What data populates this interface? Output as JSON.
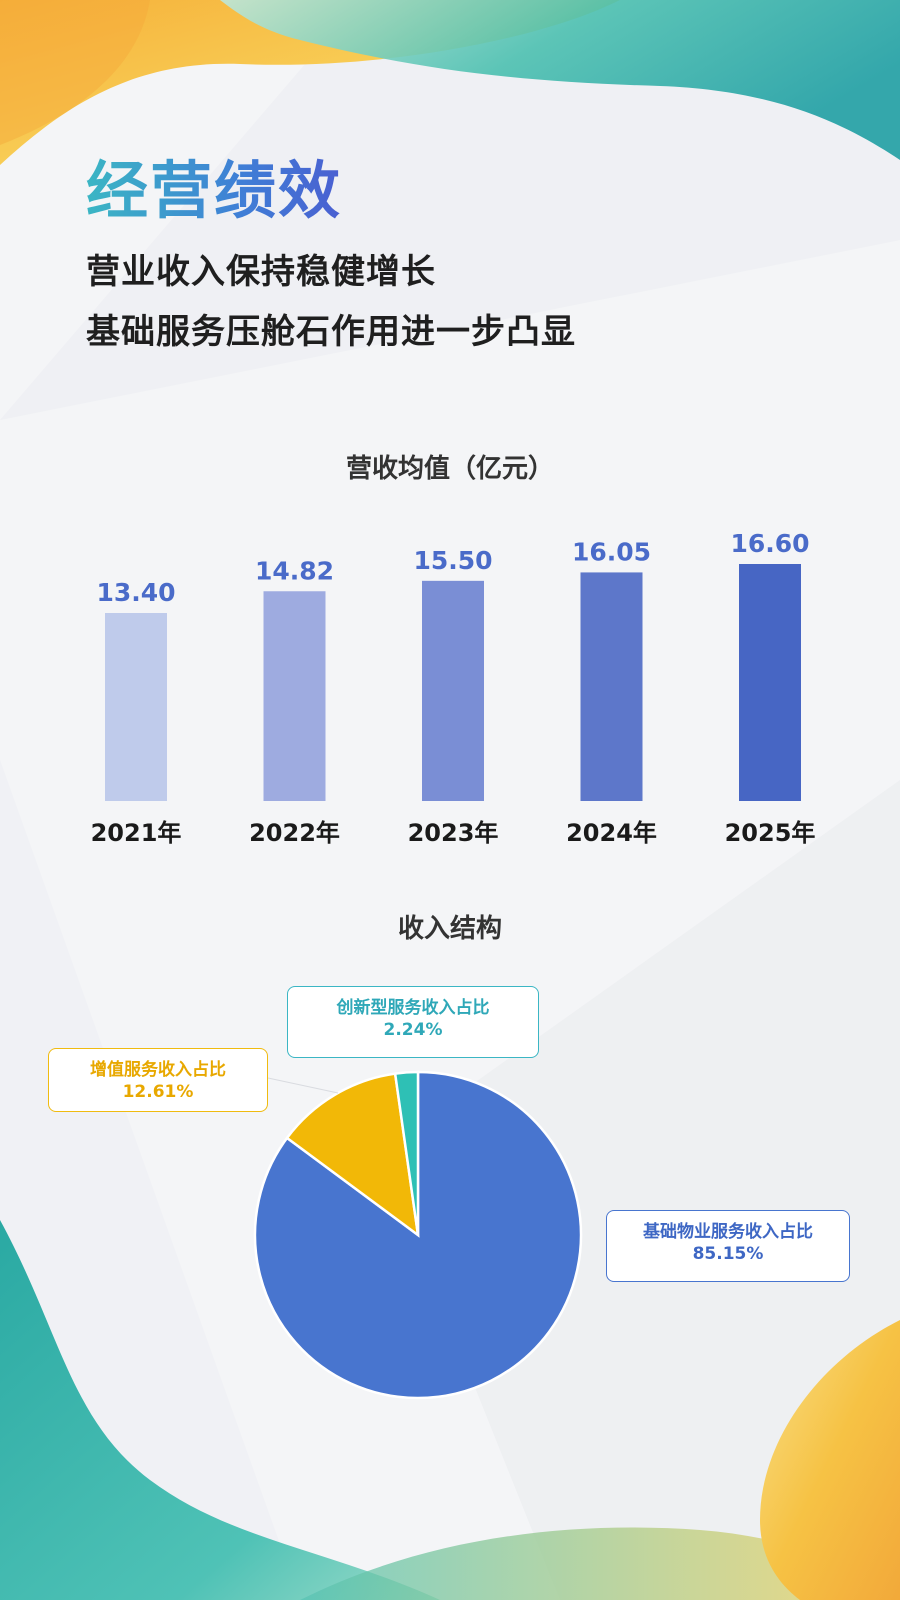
{
  "header": {
    "title": "经营绩效",
    "subtitle_line1": "营业收入保持稳健增长",
    "subtitle_line2": "基础服务压舱石作用进一步凸显"
  },
  "colors": {
    "title_gradient": [
      "#3bb6c4",
      "#4a5fd1"
    ],
    "bars": [
      "#bfcbeb",
      "#9eabe0",
      "#7a8ed5",
      "#5d77ca",
      "#4766c4"
    ],
    "bar_value_label": "#4a6bc9",
    "pie_basic": "#4875cf",
    "pie_value": "#f2b807",
    "pie_innovation": "#2ec0b5"
  },
  "chart_data": [
    {
      "type": "bar",
      "title": "营收均值（亿元）",
      "categories": [
        "2021年",
        "2022年",
        "2023年",
        "2024年",
        "2025年"
      ],
      "values": [
        13.4,
        14.82,
        15.5,
        16.05,
        16.6
      ],
      "value_labels": [
        "13.40",
        "14.82",
        "15.50",
        "16.05",
        "16.60"
      ],
      "xlabel": "",
      "ylabel": "",
      "grid": false
    },
    {
      "type": "pie",
      "title": "收入结构",
      "slices": [
        {
          "label": "基础物业服务收入占比",
          "value": 85.15,
          "value_label": "85.15%"
        },
        {
          "label": "增值服务收入占比",
          "value": 12.61,
          "value_label": "12.61%"
        },
        {
          "label": "创新型服务收入占比",
          "value": 2.24,
          "value_label": "2.24%"
        }
      ]
    }
  ]
}
